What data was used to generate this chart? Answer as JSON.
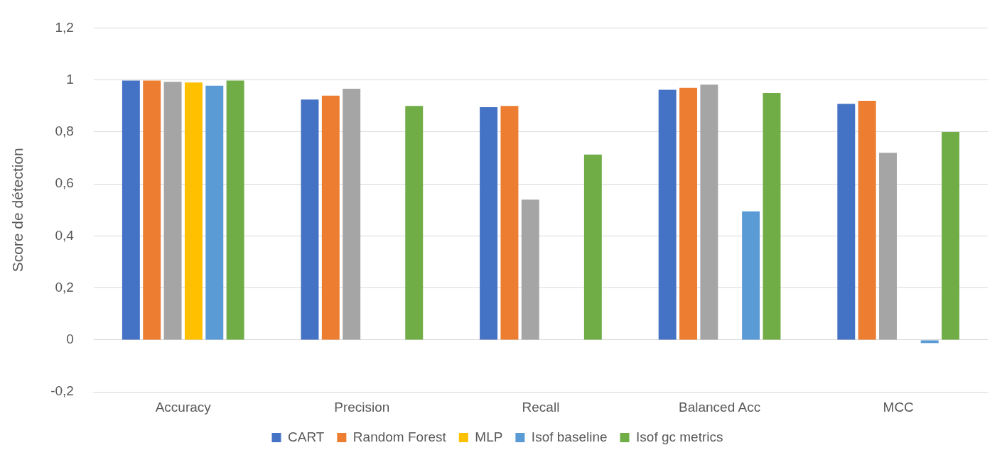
{
  "chart_data": {
    "type": "bar",
    "ylabel": "Score de détection",
    "categories": [
      "Accuracy",
      "Precision",
      "Recall",
      "Balanced Acc",
      "MCC"
    ],
    "series": [
      {
        "name": "CART",
        "color": "#4472c4",
        "values": [
          0.998,
          0.925,
          0.895,
          0.962,
          0.908
        ]
      },
      {
        "name": "Random Forest",
        "color": "#ed7d31",
        "values": [
          0.998,
          0.94,
          0.9,
          0.97,
          0.92
        ]
      },
      {
        "color": "#a5a5a5",
        "values": [
          0.993,
          0.966,
          0.54,
          0.982,
          0.72
        ]
      },
      {
        "name": "MLP",
        "color": "#ffc000",
        "values": [
          0.99,
          null,
          null,
          null,
          null
        ]
      },
      {
        "name": "Isof baseline",
        "color": "#5b9bd5",
        "values": [
          0.978,
          null,
          null,
          0.495,
          -0.012
        ]
      },
      {
        "name": "Isof gc metrics",
        "color": "#70ad47",
        "values": [
          0.998,
          0.9,
          0.713,
          0.95,
          0.8
        ]
      }
    ],
    "ylim": [
      -0.2,
      1.2
    ],
    "yticks": [
      {
        "value": -0.2,
        "label": "-0,2"
      },
      0,
      {
        "value": 0.2,
        "label": "0,2"
      },
      {
        "value": 0.4,
        "label": "0,4"
      },
      {
        "value": 0.6,
        "label": "0,6"
      },
      {
        "value": 0.8,
        "label": "0,8"
      },
      1,
      {
        "value": 1.2,
        "label": "1,2"
      }
    ],
    "grid": "y",
    "legend": "bottom"
  }
}
